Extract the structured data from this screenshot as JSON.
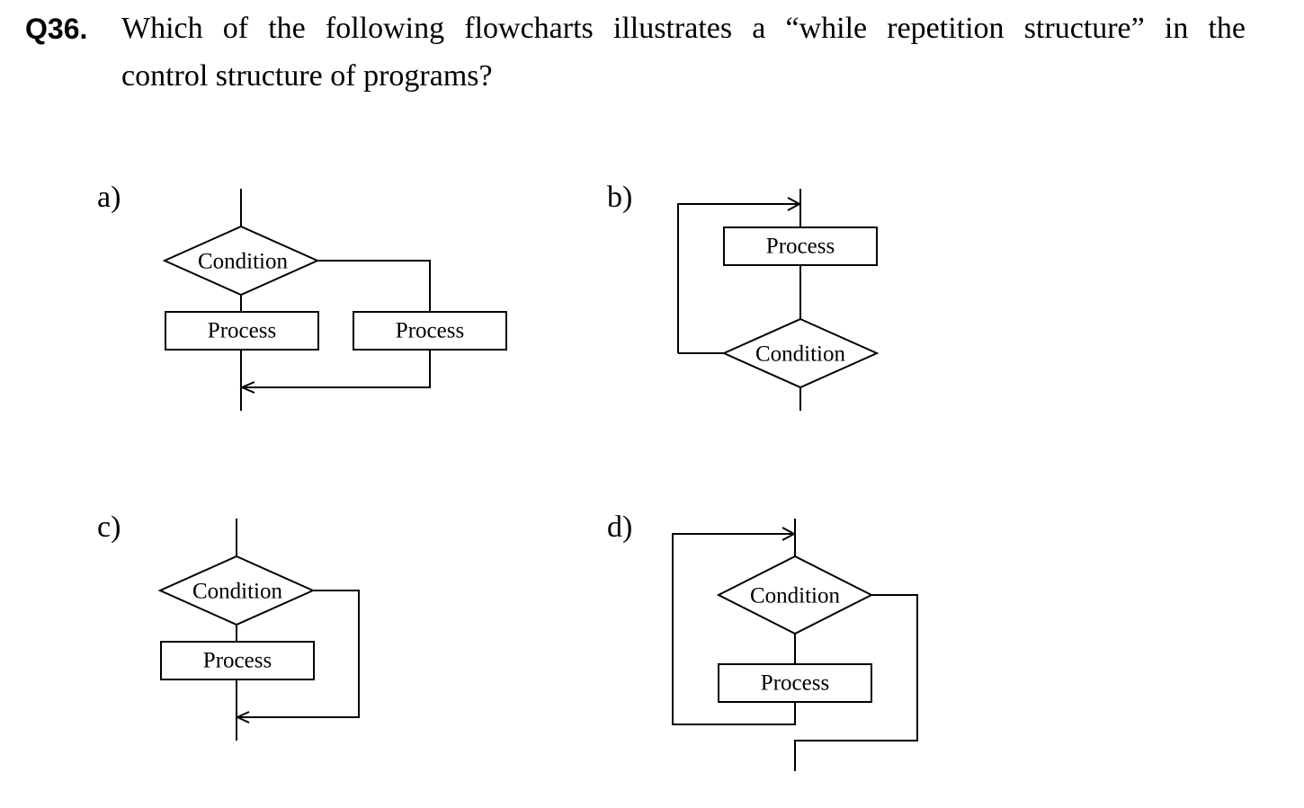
{
  "question": {
    "number": "Q36.",
    "line1": "Which of the following flowcharts illustrates a “while repetition structure” in the",
    "line2": "control structure of programs?"
  },
  "options": {
    "a": {
      "label": "a)",
      "condition": "Condition",
      "process_left": "Process",
      "process_right": "Process"
    },
    "b": {
      "label": "b)",
      "process": "Process",
      "condition": "Condition"
    },
    "c": {
      "label": "c)",
      "condition": "Condition",
      "process": "Process"
    },
    "d": {
      "label": "d)",
      "condition": "Condition",
      "process": "Process"
    }
  }
}
